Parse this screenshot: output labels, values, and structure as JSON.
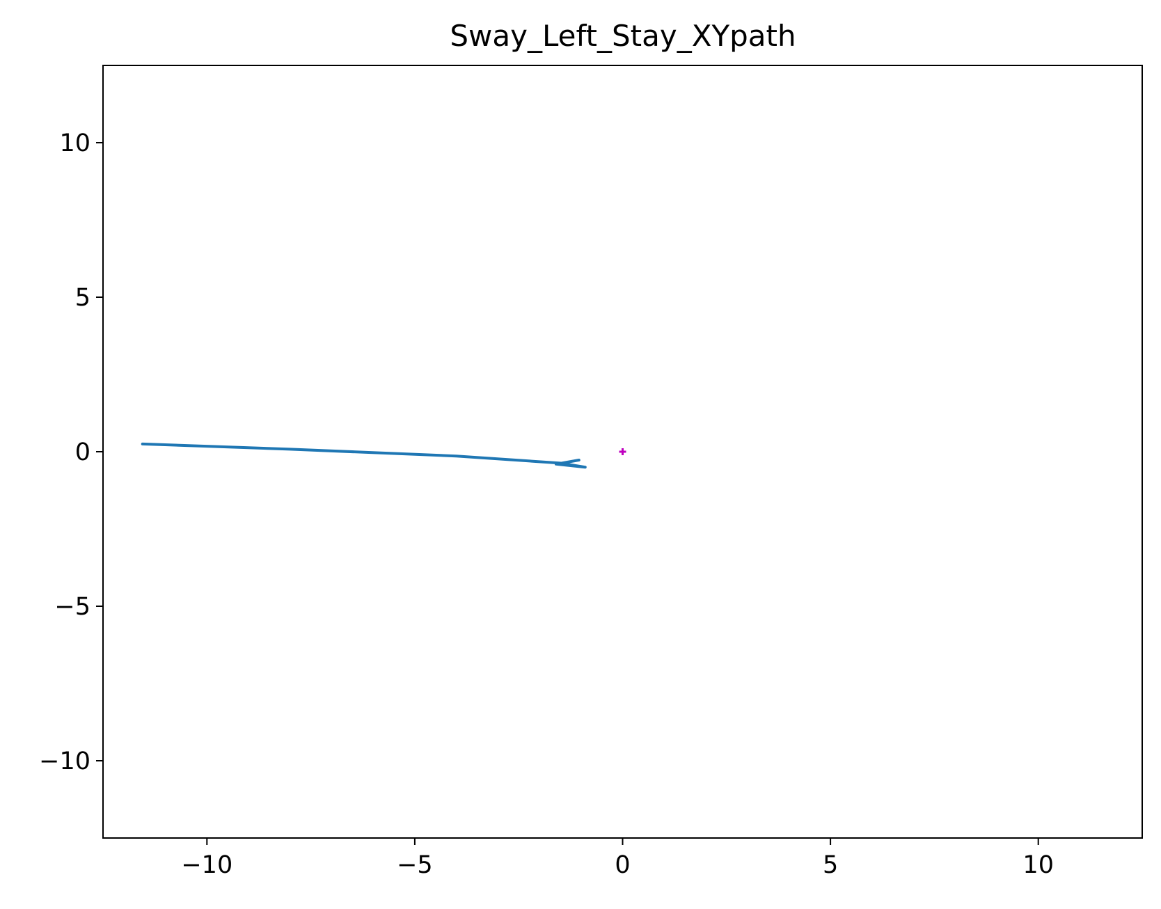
{
  "chart_data": {
    "type": "line",
    "title": "Sway_Left_Stay_XYpath",
    "xlabel": "",
    "ylabel": "",
    "xlim": [
      -12.5,
      12.5
    ],
    "ylim": [
      -12.5,
      12.5
    ],
    "x_ticks": [
      -10,
      -5,
      0,
      5,
      10
    ],
    "x_tick_labels": [
      "−10",
      "−5",
      "0",
      "5",
      "10"
    ],
    "y_ticks": [
      10,
      5,
      0,
      -5,
      -10
    ],
    "y_tick_labels": [
      "10",
      "5",
      "0",
      "−5",
      "−10"
    ],
    "grid": false,
    "legend": "none",
    "series": [
      {
        "color": "#1f77b4",
        "style": "solid line",
        "points": [
          [
            -11.55,
            0.25
          ],
          [
            -8.0,
            0.08
          ],
          [
            -4.0,
            -0.14
          ],
          [
            -1.5,
            -0.37
          ],
          [
            -0.9,
            -0.5
          ],
          [
            -1.6,
            -0.4
          ],
          [
            -1.05,
            -0.27
          ]
        ]
      }
    ],
    "markers": [
      {
        "x": 0,
        "y": 0,
        "symbol": "+",
        "color": "#bf00bf"
      }
    ]
  }
}
